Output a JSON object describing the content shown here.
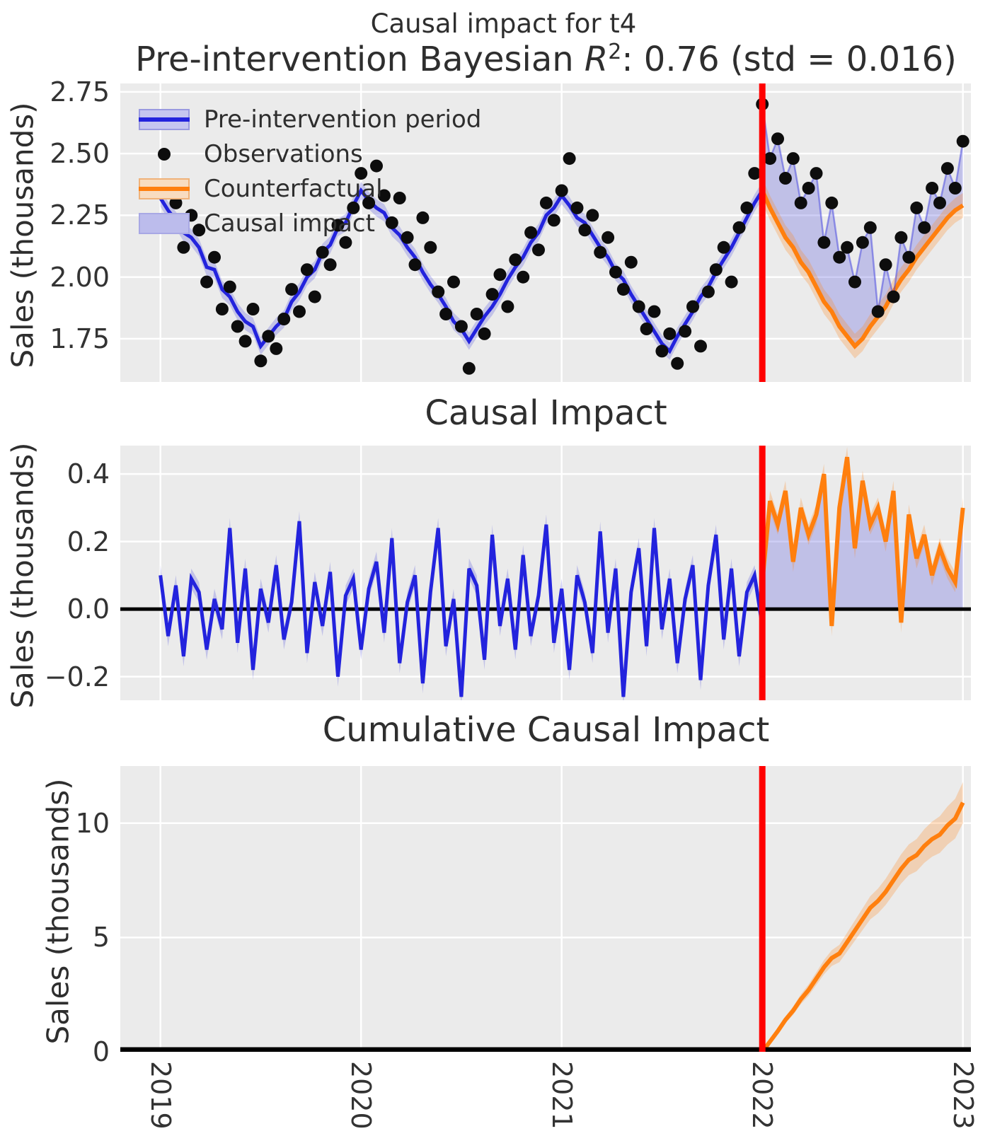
{
  "figure": {
    "suptitle": "Causal impact for t4",
    "colors": {
      "plot_bg": "#ebebeb",
      "grid": "#ffffff",
      "blue_line": "#2323dd",
      "blue_band": "rgba(50,50,220,0.22)",
      "purple_fill": "rgba(105,105,225,0.33)",
      "orange_line": "#ff7f0e",
      "orange_band": "rgba(255,127,14,0.25)",
      "obs_dot": "#0d0d0d",
      "obs_line_post": "rgba(64,64,224,0.5)",
      "intervention_line": "#ff0000",
      "zero_line": "#000000",
      "text": "#2e2e2e"
    },
    "legend": {
      "items": [
        {
          "label": "Pre-intervention period",
          "kind": "blue-band-line"
        },
        {
          "label": "Observations",
          "kind": "black-dot"
        },
        {
          "label": "Counterfactual",
          "kind": "orange-band-line"
        },
        {
          "label": "Causal impact",
          "kind": "purple-patch"
        }
      ]
    }
  },
  "panels": {
    "pre": {
      "title_prefix": "Pre-intervention Bayesian ",
      "title_math": "R",
      "title_sup": "2",
      "title_suffix": ": 0.76 (std = 0.016)",
      "ylabel": "Sales (thousands)"
    },
    "impact": {
      "title": "Causal Impact",
      "ylabel": "Sales (thousands)"
    },
    "cumulative": {
      "title": "Cumulative Causal Impact",
      "ylabel": "Sales (thousands)"
    }
  },
  "chart_data": [
    {
      "type": "line",
      "panel": "pre-intervention-fit",
      "x_start": 2019.0,
      "x_step": 0.038462,
      "xlim": [
        2018.8,
        2023.04
      ],
      "xticks": [
        2019,
        2020,
        2021,
        2022,
        2023
      ],
      "xtick_labels": [
        "2019",
        "2020",
        "2021",
        "2022",
        "2023"
      ],
      "ylim": [
        1.575,
        2.784
      ],
      "yticks": [
        2.75,
        2.5,
        2.25,
        2.0,
        1.75
      ],
      "ytick_labels": [
        "2.75",
        "2.50",
        "2.25",
        "2.00",
        "1.75"
      ],
      "intervention_x": 2022,
      "band_halfwidth_pre": 0.035,
      "band_halfwidth_cf": 0.05,
      "series": [
        {
          "name": "pre-intervention-mean",
          "x_start": 2019.0,
          "values": [
            2.32,
            2.27,
            2.23,
            2.18,
            2.16,
            2.12,
            2.04,
            2.03,
            1.95,
            1.92,
            1.86,
            1.82,
            1.8,
            1.72,
            1.76,
            1.8,
            1.83,
            1.9,
            1.94,
            2.0,
            2.03,
            2.1,
            2.13,
            2.2,
            2.22,
            2.29,
            2.35,
            2.31,
            2.28,
            2.26,
            2.2,
            2.17,
            2.12,
            2.08,
            2.02,
            1.97,
            1.93,
            1.88,
            1.82,
            1.79,
            1.74,
            1.79,
            1.84,
            1.88,
            1.93,
            1.99,
            2.04,
            2.08,
            2.14,
            2.18,
            2.25,
            2.28,
            2.33,
            2.29,
            2.24,
            2.22,
            2.17,
            2.12,
            2.08,
            2.02,
            1.99,
            1.93,
            1.88,
            1.83,
            1.78,
            1.73,
            1.7,
            1.76,
            1.81,
            1.86,
            1.92,
            1.96,
            2.02,
            2.07,
            2.12,
            2.18,
            2.24,
            2.3,
            2.35
          ]
        },
        {
          "name": "counterfactual",
          "x_start": 2022.0,
          "values": [
            2.35,
            2.28,
            2.22,
            2.16,
            2.12,
            2.06,
            2.02,
            1.96,
            1.9,
            1.86,
            1.8,
            1.76,
            1.72,
            1.75,
            1.8,
            1.84,
            1.88,
            1.94,
            1.99,
            2.03,
            2.08,
            2.12,
            2.16,
            2.2,
            2.24,
            2.27,
            2.29
          ]
        },
        {
          "name": "observations",
          "x_start": 2019.0,
          "values": [
            2.36,
            2.22,
            2.3,
            2.12,
            2.25,
            2.19,
            1.98,
            2.08,
            1.87,
            1.96,
            1.8,
            1.74,
            1.87,
            1.66,
            1.76,
            1.71,
            1.83,
            1.95,
            1.86,
            2.03,
            1.92,
            2.1,
            2.05,
            2.21,
            2.14,
            2.28,
            2.42,
            2.3,
            2.45,
            2.33,
            2.22,
            2.32,
            2.16,
            2.05,
            2.24,
            2.12,
            1.94,
            1.85,
            1.98,
            1.8,
            1.63,
            1.85,
            1.77,
            1.93,
            2.01,
            1.88,
            2.07,
            2.0,
            2.18,
            2.11,
            2.3,
            2.23,
            2.35,
            2.48,
            2.28,
            2.19,
            2.25,
            2.1,
            2.16,
            2.02,
            1.95,
            2.06,
            1.88,
            1.79,
            1.86,
            1.7,
            1.77,
            1.65,
            1.78,
            1.88,
            1.72,
            1.94,
            2.03,
            2.12,
            1.98,
            2.2,
            2.28,
            2.42,
            2.7,
            2.48,
            2.56,
            2.4,
            2.48,
            2.3,
            2.36,
            2.42,
            2.14,
            2.3,
            2.08,
            2.12,
            1.98,
            2.14,
            2.2,
            1.86,
            2.05,
            1.92,
            2.16,
            2.08,
            2.28,
            2.2,
            2.36,
            2.3,
            2.44,
            2.36,
            2.55
          ]
        }
      ]
    },
    {
      "type": "line",
      "panel": "causal-impact",
      "x_start": 2019.0,
      "x_step": 0.038462,
      "xlim": [
        2018.8,
        2023.04
      ],
      "ylim": [
        -0.27,
        0.484
      ],
      "yticks": [
        0.4,
        0.2,
        0.0,
        -0.2
      ],
      "ytick_labels": [
        "0.4",
        "0.2",
        "0.0",
        "−0.2"
      ],
      "intervention_x": 2022,
      "zero_line": true,
      "band_halfwidth": 0.03,
      "series": [
        {
          "name": "impact-pre",
          "x_start": 2019.0,
          "values": [
            0.1,
            -0.08,
            0.07,
            -0.14,
            0.09,
            0.05,
            -0.12,
            0.03,
            -0.06,
            0.24,
            -0.1,
            0.12,
            -0.18,
            0.06,
            -0.04,
            0.13,
            -0.09,
            0.02,
            0.26,
            -0.13,
            0.08,
            -0.05,
            0.11,
            -0.2,
            0.04,
            0.09,
            -0.12,
            0.06,
            0.14,
            -0.07,
            0.21,
            -0.16,
            0.02,
            0.1,
            -0.22,
            0.05,
            0.24,
            -0.11,
            0.03,
            -0.26,
            0.12,
            0.07,
            -0.15,
            0.22,
            -0.05,
            0.09,
            -0.12,
            0.16,
            -0.08,
            0.04,
            0.25,
            -0.1,
            0.06,
            -0.18,
            0.1,
            0.02,
            -0.13,
            0.23,
            -0.07,
            0.12,
            -0.26,
            0.05,
            0.18,
            -0.11,
            0.24,
            -0.06,
            0.09,
            -0.16,
            0.03,
            0.13,
            -0.21,
            0.07,
            0.22,
            -0.09,
            0.12,
            -0.14,
            0.05,
            0.1,
            -0.05
          ]
        },
        {
          "name": "impact-post",
          "x_start": 2022.0,
          "values": [
            0.08,
            0.32,
            0.25,
            0.35,
            0.14,
            0.3,
            0.22,
            0.28,
            0.4,
            -0.05,
            0.3,
            0.45,
            0.18,
            0.38,
            0.25,
            0.3,
            0.2,
            0.35,
            -0.04,
            0.28,
            0.15,
            0.22,
            0.1,
            0.18,
            0.12,
            0.08,
            0.3
          ]
        }
      ]
    },
    {
      "type": "line",
      "panel": "cumulative-causal-impact",
      "x_start": 2022.0,
      "x_step": 0.038462,
      "xlim": [
        2018.8,
        2023.04
      ],
      "ylim": [
        0,
        12.5
      ],
      "yticks": [
        10,
        5,
        0
      ],
      "ytick_labels": [
        "10",
        "5",
        "0"
      ],
      "intervention_x": 2022,
      "band_halfwidth_start": 0.05,
      "band_halfwidth_end": 0.9,
      "series": [
        {
          "name": "cumulative-impact",
          "x_start": 2022.0,
          "values": [
            0.0,
            0.45,
            0.9,
            1.4,
            1.8,
            2.3,
            2.7,
            3.2,
            3.7,
            4.1,
            4.3,
            4.8,
            5.3,
            5.8,
            6.3,
            6.6,
            7.0,
            7.5,
            8.0,
            8.4,
            8.6,
            9.0,
            9.3,
            9.5,
            9.9,
            10.2,
            10.9
          ]
        }
      ]
    }
  ]
}
